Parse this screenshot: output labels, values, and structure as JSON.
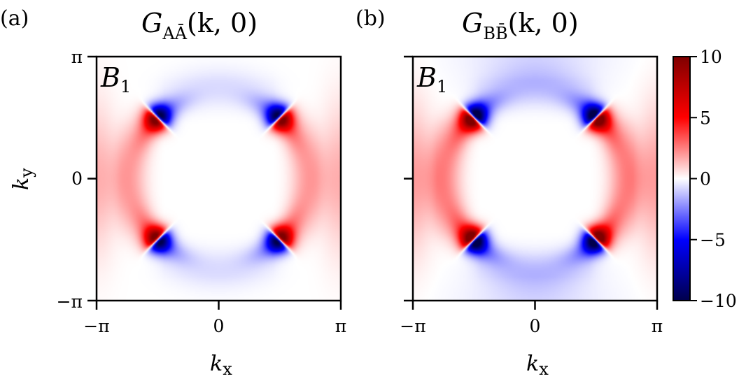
{
  "chart_data": [
    {
      "type": "heatmap",
      "panel_label": "(a)",
      "title": {
        "main": "G",
        "subscript": "AĀ",
        "args": "(k, 0)"
      },
      "inset_label": {
        "main": "B",
        "subscript": "1"
      },
      "xlabel": {
        "main": "k",
        "subscript": "x"
      },
      "ylabel": {
        "main": "k",
        "subscript": "y"
      },
      "xlim": [
        -3.1416,
        3.1416
      ],
      "ylim": [
        -3.1416,
        3.1416
      ],
      "xticks": [
        "−π",
        "0",
        "π"
      ],
      "yticks": [
        "−π",
        "0",
        "π"
      ],
      "colormap": "seismic",
      "zrange": [
        -10,
        10
      ],
      "features": {
        "hotspot_positions": [
          [
            -1.57,
            1.57
          ],
          [
            1.57,
            1.57
          ],
          [
            -1.57,
            -1.57
          ],
          [
            1.57,
            -1.57
          ]
        ],
        "hotspot_peak_value": 9,
        "hotspot_sign_convention": "positive on the outer side (toward x = ±π), negative on the inner side",
        "arc_radius": 2.2,
        "edge_band_value_at_x_pi": 2.5,
        "background_blue_value": -0.3
      }
    },
    {
      "type": "heatmap",
      "panel_label": "(b)",
      "title": {
        "main": "G",
        "subscript": "BB̄",
        "args": "(k, 0)"
      },
      "inset_label": {
        "main": "B",
        "subscript": "1"
      },
      "xlabel": {
        "main": "k",
        "subscript": "x"
      },
      "xlim": [
        -3.1416,
        3.1416
      ],
      "ylim": [
        -3.1416,
        3.1416
      ],
      "xticks": [
        "−π",
        "0",
        "π"
      ],
      "colormap": "seismic",
      "zrange": [
        -10,
        10
      ],
      "features": {
        "hotspot_positions": [
          [
            -1.57,
            1.57
          ],
          [
            1.57,
            1.57
          ],
          [
            -1.57,
            -1.57
          ],
          [
            1.57,
            -1.57
          ]
        ],
        "hotspot_peak_value": 10,
        "hotspot_sign_convention": "positive on the outer side (toward x = ±π), negative on the inner side",
        "arc_radius": 2.25,
        "edge_band_value_at_x_pi": 3,
        "edge_band_value_at_y_pi": -1.5
      }
    }
  ],
  "colorbar": {
    "ticks": [
      {
        "value": 10,
        "label": "10"
      },
      {
        "value": 5,
        "label": "5"
      },
      {
        "value": 0,
        "label": "0"
      },
      {
        "value": -5,
        "label": "−5"
      },
      {
        "value": -10,
        "label": "−10"
      }
    ],
    "range": [
      -10,
      10
    ],
    "colors": {
      "min": "#00004c",
      "low": "#0000ff",
      "mid": "#ffffff",
      "high": "#ff0000",
      "max": "#7f0000"
    }
  }
}
